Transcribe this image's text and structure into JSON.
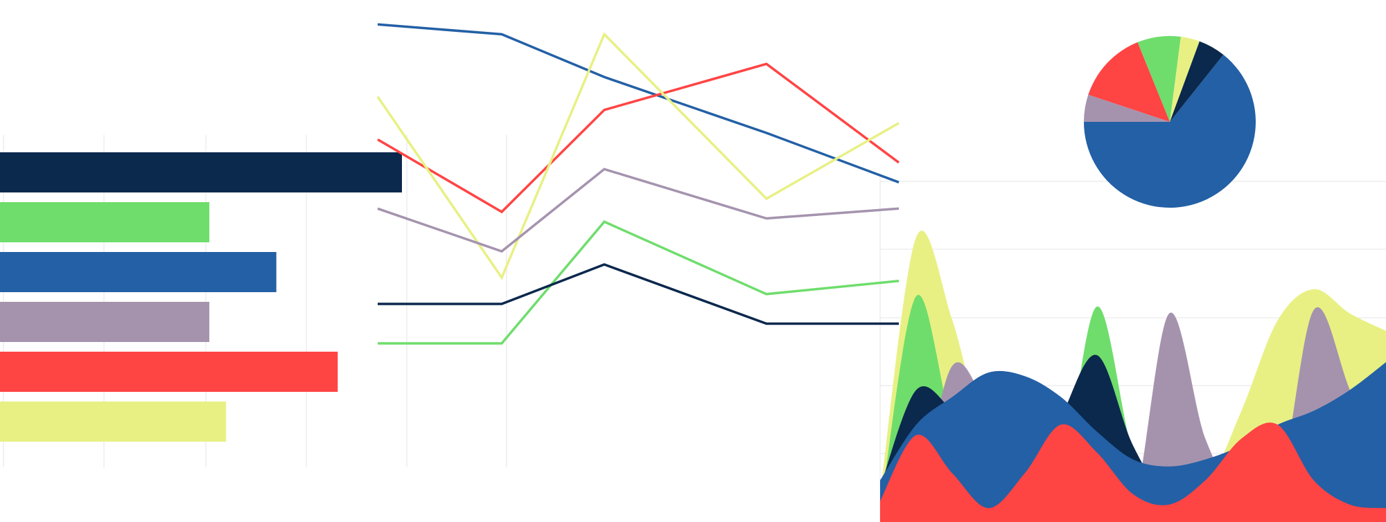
{
  "palette": {
    "navy": "#0b284d",
    "green": "#6fdd6c",
    "blue": "#2360a5",
    "mauve": "#a593ae",
    "red": "#ff4444",
    "yellow": "#e8f084",
    "grid": "#e6e6e6"
  },
  "chart_data": [
    {
      "type": "bar",
      "orientation": "horizontal",
      "values": [
        72,
        37.5,
        49.5,
        37.5,
        60.5,
        40.5
      ],
      "colors": [
        "#0b284d",
        "#6fdd6c",
        "#2360a5",
        "#a593ae",
        "#ff4444",
        "#e8f084"
      ],
      "xlim": [
        0,
        90
      ],
      "grid": true
    },
    {
      "type": "line",
      "x": [
        0,
        1,
        2,
        3,
        4
      ],
      "ylim": [
        0,
        100
      ],
      "grid": true,
      "series": [
        {
          "color": "#2360a5",
          "values": [
            97,
            94,
            81,
            64,
            49
          ]
        },
        {
          "color": "#ff4444",
          "values": [
            62,
            40,
            71,
            85,
            55
          ]
        },
        {
          "color": "#e8f084",
          "values": [
            75,
            20,
            94,
            44,
            67
          ]
        },
        {
          "color": "#a593ae",
          "values": [
            41,
            28,
            53,
            38,
            41
          ]
        },
        {
          "color": "#6fdd6c",
          "values": [
            0,
            0,
            37,
            15,
            19
          ]
        },
        {
          "color": "#0b284d",
          "values": [
            12,
            12,
            24,
            6,
            6
          ]
        }
      ]
    },
    {
      "type": "pie",
      "values": [
        63,
        5,
        3.5,
        8,
        13.5,
        5
      ],
      "colors": [
        "#2360a5",
        "#0b284d",
        "#e8f084",
        "#6fdd6c",
        "#ff4444",
        "#a593ae"
      ]
    },
    {
      "type": "area",
      "x": [
        0,
        1,
        2,
        3,
        4,
        5,
        6,
        7,
        8,
        9,
        10,
        11,
        12,
        13,
        14
      ],
      "ylim": [
        0,
        100
      ],
      "grid": true,
      "series": [
        {
          "color": "#e8f084",
          "values": [
            8,
            82,
            58,
            20,
            10,
            8,
            5,
            4,
            8,
            10,
            32,
            58,
            67,
            60,
            55
          ]
        },
        {
          "color": "#6fdd6c",
          "values": [
            3,
            65,
            28,
            10,
            5,
            12,
            62,
            20,
            4,
            2,
            2,
            2,
            4,
            2,
            2
          ]
        },
        {
          "color": "#a593ae",
          "values": [
            2,
            6,
            45,
            32,
            10,
            5,
            4,
            4,
            60,
            24,
            6,
            8,
            61,
            38,
            12
          ]
        },
        {
          "color": "#0b284d",
          "values": [
            10,
            38,
            32,
            20,
            8,
            30,
            48,
            22,
            6,
            4,
            4,
            4,
            4,
            4,
            4
          ]
        },
        {
          "color": "#2360a5",
          "values": [
            12,
            28,
            36,
            43,
            42,
            36,
            26,
            18,
            16,
            18,
            22,
            28,
            32,
            38,
            46
          ]
        },
        {
          "color": "#ff4444",
          "values": [
            6,
            25,
            14,
            4,
            14,
            28,
            20,
            8,
            5,
            12,
            24,
            28,
            12,
            5,
            4
          ]
        }
      ]
    }
  ]
}
